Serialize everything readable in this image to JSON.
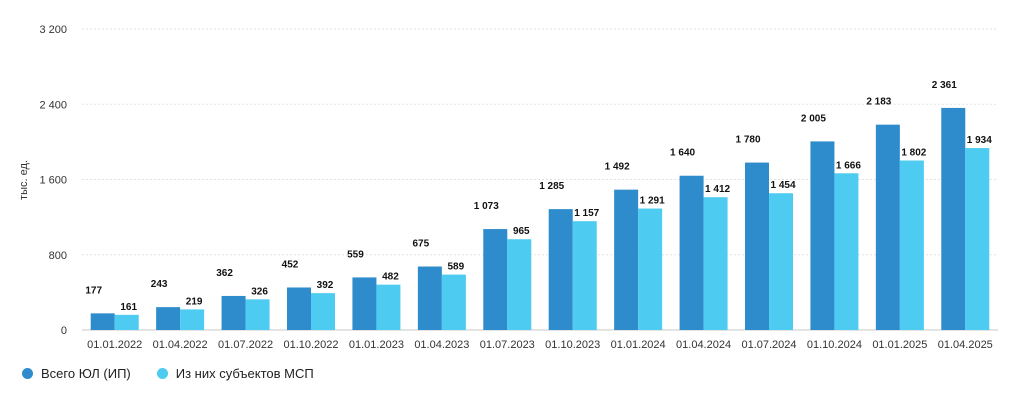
{
  "chart_data": {
    "type": "bar",
    "ylabel": "тыс. ед.",
    "ylim": [
      0,
      3200
    ],
    "yticks": [
      0,
      800,
      1600,
      2400,
      3200
    ],
    "ytick_labels": [
      "0",
      "800",
      "1 600",
      "2 400",
      "3 200"
    ],
    "grid": true,
    "legend_position": "bottom-left",
    "categories": [
      "01.01.2022",
      "01.04.2022",
      "01.07.2022",
      "01.10.2022",
      "01.01.2023",
      "01.04.2023",
      "01.07.2023",
      "01.10.2023",
      "01.01.2024",
      "01.04.2024",
      "01.07.2024",
      "01.10.2024",
      "01.01.2025",
      "01.04.2025"
    ],
    "series": [
      {
        "name": "Всего ЮЛ (ИП)",
        "color": "#2e8bcc",
        "values": [
          177,
          243,
          362,
          452,
          559,
          675,
          1073,
          1285,
          1492,
          1640,
          1780,
          2005,
          2183,
          2361
        ],
        "labels": [
          "177",
          "243",
          "362",
          "452",
          "559",
          "675",
          "1 073",
          "1 285",
          "1 492",
          "1 640",
          "1 780",
          "2 005",
          "2 183",
          "2 361"
        ]
      },
      {
        "name": "Из них субъектов МСП",
        "color": "#4dcbf0",
        "values": [
          161,
          219,
          326,
          392,
          482,
          589,
          965,
          1157,
          1291,
          1412,
          1454,
          1666,
          1802,
          1934
        ],
        "labels": [
          "161",
          "219",
          "326",
          "392",
          "482",
          "589",
          "965",
          "1 157",
          "1 291",
          "1 412",
          "1 454",
          "1 666",
          "1 802",
          "1 934"
        ]
      }
    ]
  }
}
